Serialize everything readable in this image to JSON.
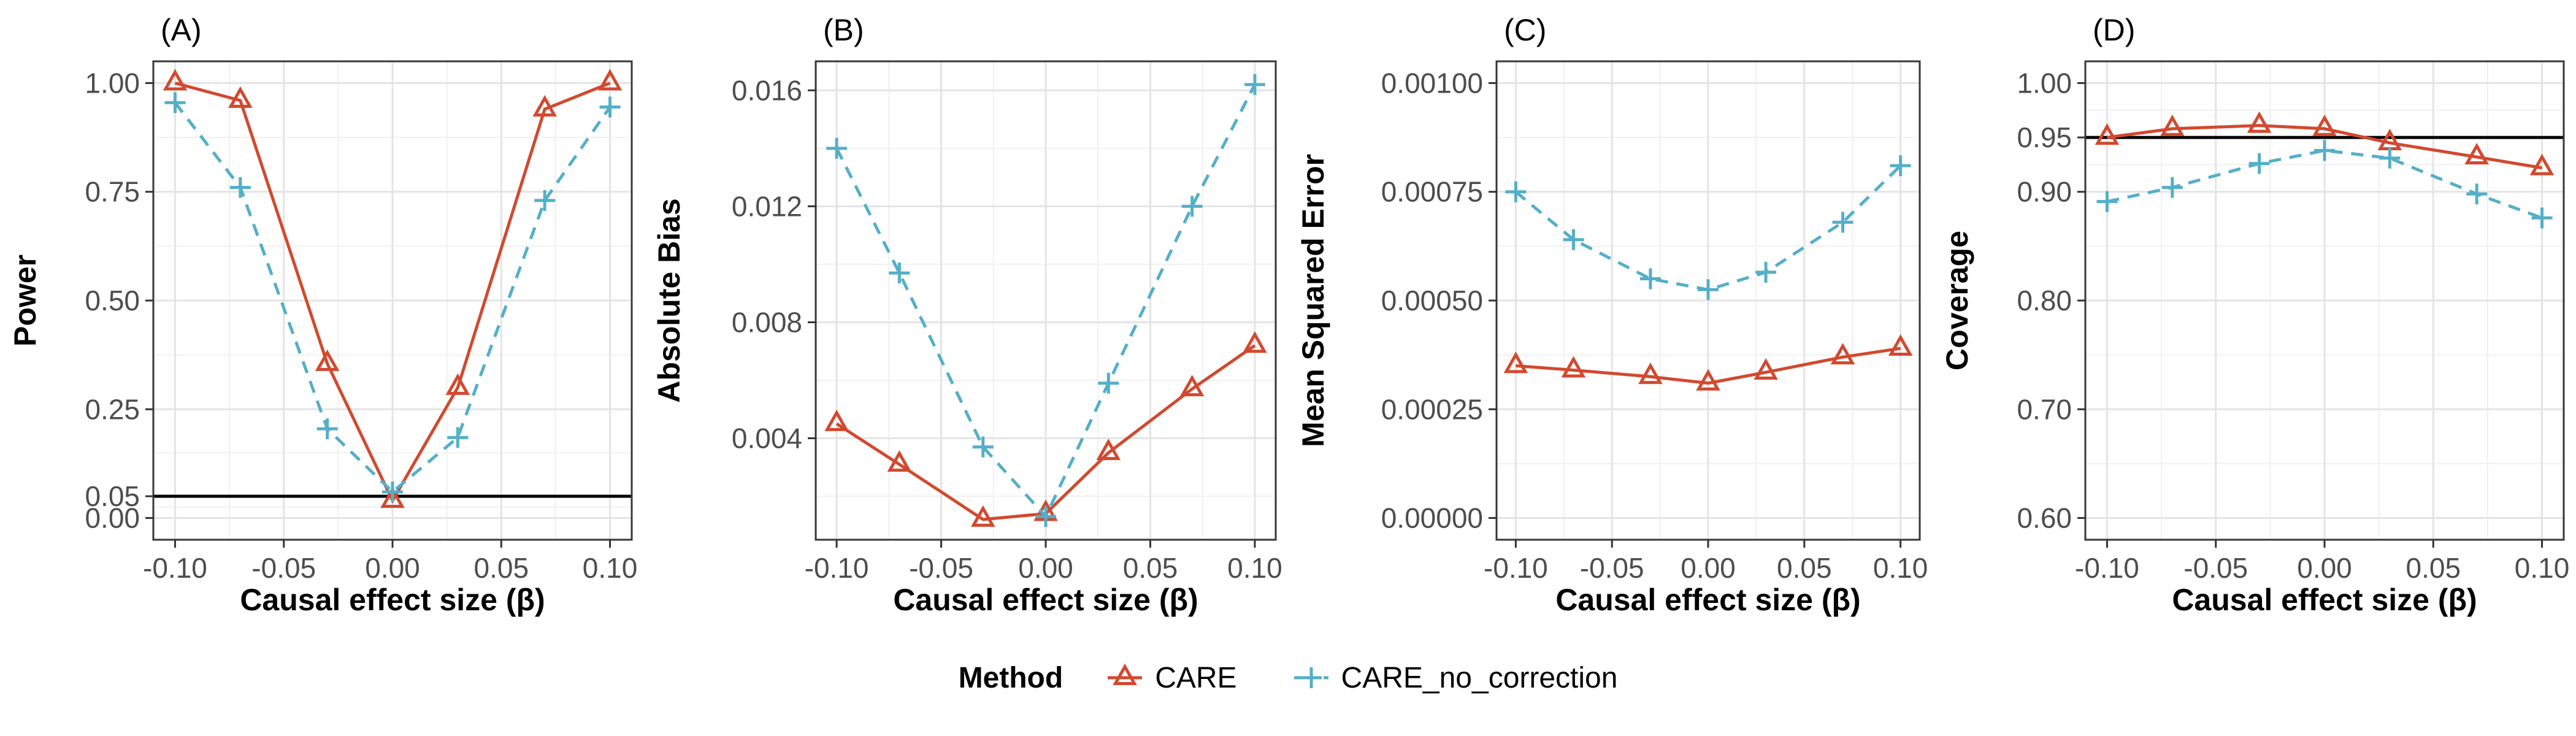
{
  "figure": {
    "legend": {
      "title": "Method",
      "position": "bottom-center",
      "items": [
        {
          "label": "CARE",
          "color": "#D2492F",
          "marker": "triangle-open",
          "line": "solid"
        },
        {
          "label": "CARE_no_correction",
          "color": "#54AFC7",
          "marker": "plus",
          "line": "dashed"
        }
      ]
    },
    "style": {
      "background": "#FFFFFF",
      "grid_major": "#E4E4E4",
      "grid_minor": "#F0F0F0",
      "panel_border": "#373737",
      "tick_mark": "#333333",
      "tick_label_color": "#4D4D4D",
      "axis_title_color": "#000000",
      "ref_line_color": "#000000"
    }
  },
  "chart_data": [
    {
      "type": "line",
      "tag": "(A)",
      "title": "",
      "xlabel": "Causal effect size (β)",
      "ylabel": "Power",
      "x": [
        -0.1,
        -0.07,
        -0.03,
        0.0,
        0.03,
        0.07,
        0.1
      ],
      "series": [
        {
          "name": "CARE",
          "values": [
            1.0,
            0.96,
            0.355,
            0.04,
            0.3,
            0.94,
            1.0
          ]
        },
        {
          "name": "CARE_no_correction",
          "values": [
            0.955,
            0.76,
            0.205,
            0.06,
            0.185,
            0.73,
            0.945
          ]
        }
      ],
      "ref_line": 0.05,
      "xlim": [
        -0.11,
        0.11
      ],
      "ylim": [
        -0.05,
        1.05
      ],
      "x_ticks": [
        {
          "v": -0.1,
          "label": "-0.10"
        },
        {
          "v": -0.05,
          "label": "-0.05"
        },
        {
          "v": 0.0,
          "label": "0.00"
        },
        {
          "v": 0.05,
          "label": "0.05"
        },
        {
          "v": 0.1,
          "label": "0.10"
        }
      ],
      "y_ticks": [
        {
          "v": 0.0,
          "label": "0.00"
        },
        {
          "v": 0.05,
          "label": "0.05"
        },
        {
          "v": 0.25,
          "label": "0.25"
        },
        {
          "v": 0.5,
          "label": "0.50"
        },
        {
          "v": 0.75,
          "label": "0.75"
        },
        {
          "v": 1.0,
          "label": "1.00"
        }
      ],
      "x_minor": [
        -0.075,
        -0.025,
        0.025,
        0.075
      ],
      "y_minor": [
        0.025,
        0.15,
        0.375,
        0.625,
        0.875
      ],
      "grid": true,
      "margin_left": 250
    },
    {
      "type": "line",
      "tag": "(B)",
      "title": "",
      "xlabel": "Causal effect size (β)",
      "ylabel": "Absolute Bias",
      "x": [
        -0.1,
        -0.07,
        -0.03,
        0.0,
        0.03,
        0.07,
        0.1
      ],
      "series": [
        {
          "name": "CARE",
          "values": [
            0.0045,
            0.0031,
            0.0012,
            0.0014,
            0.0035,
            0.0057,
            0.0072
          ]
        },
        {
          "name": "CARE_no_correction",
          "values": [
            0.014,
            0.0097,
            0.0037,
            0.0013,
            0.0059,
            0.012,
            0.0162
          ]
        }
      ],
      "ref_line": null,
      "xlim": [
        -0.11,
        0.11
      ],
      "ylim": [
        0.0005,
        0.017
      ],
      "x_ticks": [
        {
          "v": -0.1,
          "label": "-0.10"
        },
        {
          "v": -0.05,
          "label": "-0.05"
        },
        {
          "v": 0.0,
          "label": "0.00"
        },
        {
          "v": 0.05,
          "label": "0.05"
        },
        {
          "v": 0.1,
          "label": "0.10"
        }
      ],
      "y_ticks": [
        {
          "v": 0.004,
          "label": "0.004"
        },
        {
          "v": 0.008,
          "label": "0.008"
        },
        {
          "v": 0.012,
          "label": "0.012"
        },
        {
          "v": 0.016,
          "label": "0.016"
        }
      ],
      "x_minor": [
        -0.075,
        -0.025,
        0.025,
        0.075
      ],
      "y_minor": [
        0.002,
        0.006,
        0.01,
        0.014
      ],
      "grid": true,
      "margin_left": 280
    },
    {
      "type": "line",
      "tag": "(C)",
      "title": "",
      "xlabel": "Causal effect size (β)",
      "ylabel": "Mean Squared Error",
      "x": [
        -0.1,
        -0.07,
        -0.03,
        0.0,
        0.03,
        0.07,
        0.1
      ],
      "series": [
        {
          "name": "CARE",
          "values": [
            0.00035,
            0.00034,
            0.000325,
            0.00031,
            0.000335,
            0.00037,
            0.00039
          ]
        },
        {
          "name": "CARE_no_correction",
          "values": [
            0.00075,
            0.00064,
            0.00055,
            0.000525,
            0.000565,
            0.00068,
            0.00081
          ]
        }
      ],
      "ref_line": null,
      "xlim": [
        -0.11,
        0.11
      ],
      "ylim": [
        -5e-05,
        0.00105
      ],
      "x_ticks": [
        {
          "v": -0.1,
          "label": "-0.10"
        },
        {
          "v": -0.05,
          "label": "-0.05"
        },
        {
          "v": 0.0,
          "label": "0.00"
        },
        {
          "v": 0.05,
          "label": "0.05"
        },
        {
          "v": 0.1,
          "label": "0.10"
        }
      ],
      "y_ticks": [
        {
          "v": 0.0,
          "label": "0.00000"
        },
        {
          "v": 0.00025,
          "label": "0.00025"
        },
        {
          "v": 0.0005,
          "label": "0.00050"
        },
        {
          "v": 0.00075,
          "label": "0.00075"
        },
        {
          "v": 0.001,
          "label": "0.00100"
        }
      ],
      "x_minor": [
        -0.075,
        -0.025,
        0.025,
        0.075
      ],
      "y_minor": [
        0.000125,
        0.000375,
        0.000625,
        0.000875
      ],
      "grid": true,
      "margin_left": 340
    },
    {
      "type": "line",
      "tag": "(D)",
      "title": "",
      "xlabel": "Causal effect size (β)",
      "ylabel": "Coverage",
      "x": [
        -0.1,
        -0.07,
        -0.03,
        0.0,
        0.03,
        0.07,
        0.1
      ],
      "series": [
        {
          "name": "CARE",
          "values": [
            0.95,
            0.958,
            0.961,
            0.958,
            0.945,
            0.932,
            0.922
          ]
        },
        {
          "name": "CARE_no_correction",
          "values": [
            0.891,
            0.904,
            0.926,
            0.938,
            0.931,
            0.898,
            0.876
          ]
        }
      ],
      "ref_line": 0.95,
      "xlim": [
        -0.11,
        0.11
      ],
      "ylim": [
        0.58,
        1.02
      ],
      "x_ticks": [
        {
          "v": -0.1,
          "label": "-0.10"
        },
        {
          "v": -0.05,
          "label": "-0.05"
        },
        {
          "v": 0.0,
          "label": "0.00"
        },
        {
          "v": 0.05,
          "label": "0.05"
        },
        {
          "v": 0.1,
          "label": "0.10"
        }
      ],
      "y_ticks": [
        {
          "v": 0.6,
          "label": "0.60"
        },
        {
          "v": 0.7,
          "label": "0.70"
        },
        {
          "v": 0.8,
          "label": "0.80"
        },
        {
          "v": 0.9,
          "label": "0.90"
        },
        {
          "v": 0.95,
          "label": "0.95"
        },
        {
          "v": 1.0,
          "label": "1.00"
        }
      ],
      "x_minor": [
        -0.075,
        -0.025,
        0.025,
        0.075
      ],
      "y_minor": [
        0.65,
        0.75,
        0.85,
        0.925,
        0.975
      ],
      "grid": true,
      "margin_left": 250
    }
  ]
}
